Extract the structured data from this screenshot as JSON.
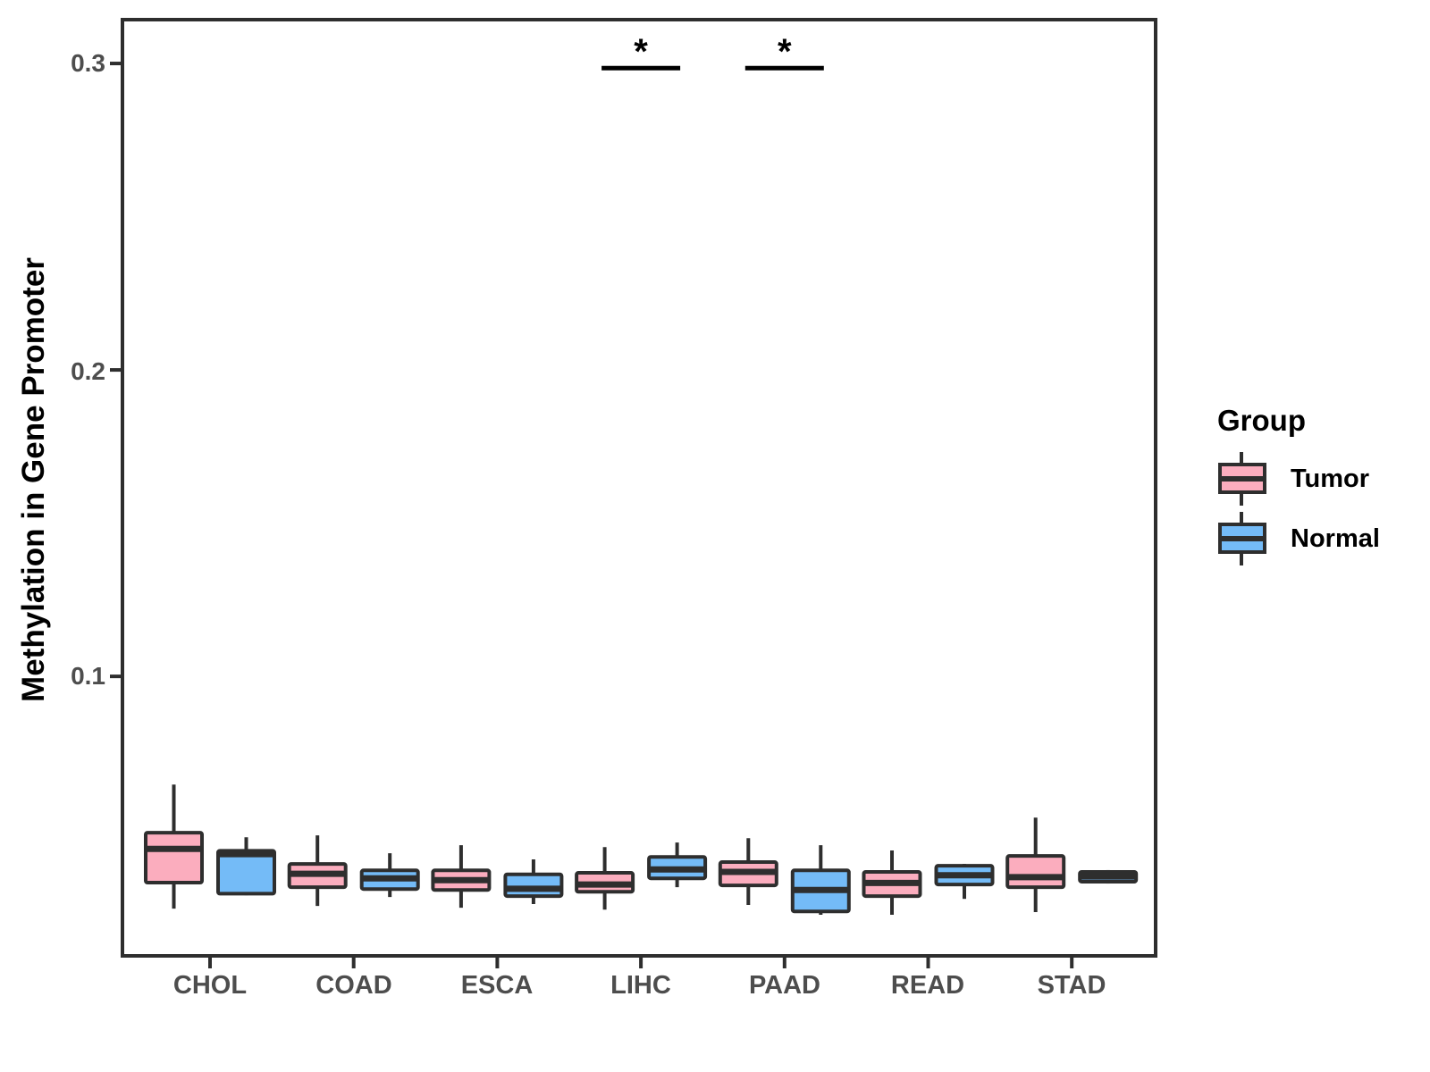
{
  "chart_data": {
    "type": "grouped_boxplot",
    "title": "",
    "xlabel": "",
    "ylabel": "Methylation in Gene Promoter",
    "categories": [
      "CHOL",
      "COAD",
      "ESCA",
      "LIHC",
      "PAAD",
      "READ",
      "STAD"
    ],
    "y_ticks": [
      0.1,
      0.2,
      0.3
    ],
    "y_tick_labels": [
      "0.1",
      "0.2",
      "0.3"
    ],
    "ylim": [
      0.0088,
      0.3143
    ],
    "grid": false,
    "legend": {
      "title": "Group",
      "position": "right",
      "entries": [
        {
          "label": "Tumor",
          "color": "#FBADBE"
        },
        {
          "label": "Normal",
          "color": "#74BBF7"
        }
      ]
    },
    "series": [
      {
        "name": "Tumor",
        "color": "#FBADBE",
        "boxes": [
          {
            "category": "CHOL",
            "whisker_low": 0.0242,
            "q1": 0.0327,
            "median": 0.0437,
            "q3": 0.049,
            "whisker_high": 0.0647
          },
          {
            "category": "COAD",
            "whisker_low": 0.0251,
            "q1": 0.0312,
            "median": 0.0356,
            "q3": 0.0388,
            "whisker_high": 0.0481
          },
          {
            "category": "ESCA",
            "whisker_low": 0.0245,
            "q1": 0.0303,
            "median": 0.0335,
            "q3": 0.0367,
            "whisker_high": 0.0449
          },
          {
            "category": "LIHC",
            "whisker_low": 0.0239,
            "q1": 0.0297,
            "median": 0.0321,
            "q3": 0.0359,
            "whisker_high": 0.0443
          },
          {
            "category": "PAAD",
            "whisker_low": 0.0254,
            "q1": 0.0318,
            "median": 0.0362,
            "q3": 0.0394,
            "whisker_high": 0.0472
          },
          {
            "category": "READ",
            "whisker_low": 0.0222,
            "q1": 0.0283,
            "median": 0.0326,
            "q3": 0.0362,
            "whisker_high": 0.0432
          },
          {
            "category": "STAD",
            "whisker_low": 0.0231,
            "q1": 0.0312,
            "median": 0.0345,
            "q3": 0.0414,
            "whisker_high": 0.0539
          }
        ]
      },
      {
        "name": "Normal",
        "color": "#74BBF7",
        "boxes": [
          {
            "category": "CHOL",
            "whisker_low": 0.0286,
            "q1": 0.0291,
            "median": 0.042,
            "q3": 0.0431,
            "whisker_high": 0.0475
          },
          {
            "category": "COAD",
            "whisker_low": 0.028,
            "q1": 0.0306,
            "median": 0.0341,
            "q3": 0.0367,
            "whisker_high": 0.0423
          },
          {
            "category": "ESCA",
            "whisker_low": 0.0257,
            "q1": 0.0283,
            "median": 0.0307,
            "q3": 0.0354,
            "whisker_high": 0.0403
          },
          {
            "category": "LIHC",
            "whisker_low": 0.0312,
            "q1": 0.0341,
            "median": 0.037,
            "q3": 0.0411,
            "whisker_high": 0.0458
          },
          {
            "category": "PAAD",
            "whisker_low": 0.0222,
            "q1": 0.0233,
            "median": 0.0303,
            "q3": 0.0367,
            "whisker_high": 0.0449
          },
          {
            "category": "READ",
            "whisker_low": 0.0274,
            "q1": 0.0321,
            "median": 0.0351,
            "q3": 0.0382,
            "whisker_high": 0.0388
          },
          {
            "category": "STAD",
            "whisker_low": 0.0324,
            "q1": 0.033,
            "median": 0.0347,
            "q3": 0.0362,
            "whisker_high": 0.0368
          }
        ]
      }
    ],
    "annotations": [
      {
        "category": "LIHC",
        "label": "*",
        "bar_y": 0.2985
      },
      {
        "category": "PAAD",
        "label": "*",
        "bar_y": 0.2985
      }
    ]
  }
}
